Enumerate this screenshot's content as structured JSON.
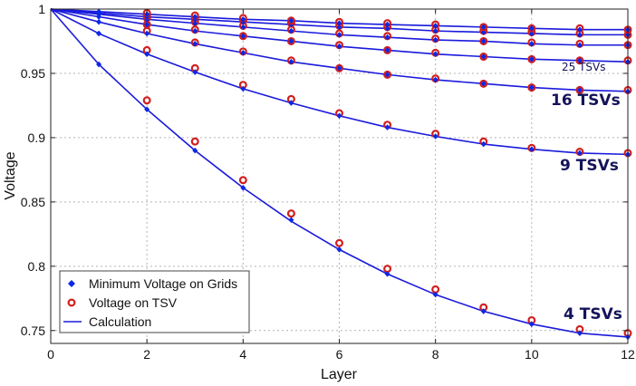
{
  "chart_data": {
    "type": "line",
    "title": "",
    "xlabel": "Layer",
    "ylabel": "Voltage",
    "xlim": [
      0,
      12
    ],
    "ylim": [
      0.74,
      1.0
    ],
    "xticks": [
      0,
      2,
      4,
      6,
      8,
      10,
      12
    ],
    "yticks": [
      0.75,
      0.8,
      0.85,
      0.9,
      0.95,
      1
    ],
    "ytick_labels": [
      "0.75",
      "0.8",
      "0.85",
      "0.9",
      "0.95",
      "1"
    ],
    "grid": true,
    "legend_position": "bottom-left",
    "legend": [
      "Minimum Voltage on Grids",
      "Voltage on TSV",
      "Calculation"
    ],
    "colors": {
      "calculation": "#1a1adc",
      "grid_marker": "#0a28e6",
      "tsv_marker": "#d21e1e"
    },
    "x": [
      0,
      1,
      2,
      3,
      4,
      5,
      6,
      7,
      8,
      9,
      10,
      11,
      12
    ],
    "series": [
      {
        "name": "4 TSVs",
        "calculation": [
          1.0,
          0.957,
          0.922,
          0.89,
          0.861,
          0.835,
          0.813,
          0.794,
          0.778,
          0.765,
          0.755,
          0.748,
          0.745
        ],
        "min_voltage_on_grids": [
          1.0,
          0.957,
          0.922,
          0.89,
          0.861,
          0.836,
          0.813,
          0.794,
          0.778,
          0.765,
          0.755,
          0.748,
          0.745
        ],
        "voltage_on_tsv": [
          null,
          null,
          0.929,
          0.897,
          0.867,
          0.841,
          0.818,
          0.798,
          0.782,
          0.768,
          0.758,
          0.751,
          0.748
        ]
      },
      {
        "name": "9 TSVs",
        "calculation": [
          1.0,
          0.981,
          0.965,
          0.951,
          0.938,
          0.927,
          0.917,
          0.908,
          0.901,
          0.895,
          0.891,
          0.888,
          0.887
        ],
        "min_voltage_on_grids": [
          1.0,
          0.981,
          0.965,
          0.951,
          0.938,
          0.927,
          0.917,
          0.908,
          0.901,
          0.895,
          0.891,
          0.888,
          0.887
        ],
        "voltage_on_tsv": [
          null,
          null,
          0.968,
          0.954,
          0.941,
          0.93,
          0.919,
          0.91,
          0.903,
          0.897,
          0.892,
          0.889,
          0.888
        ]
      },
      {
        "name": "16 TSVs",
        "calculation": [
          1.0,
          0.99,
          0.981,
          0.973,
          0.966,
          0.959,
          0.954,
          0.949,
          0.945,
          0.942,
          0.939,
          0.937,
          0.936
        ],
        "min_voltage_on_grids": [
          1.0,
          0.99,
          0.981,
          0.973,
          0.966,
          0.959,
          0.954,
          0.949,
          0.945,
          0.942,
          0.939,
          0.937,
          0.936
        ],
        "voltage_on_tsv": [
          null,
          null,
          0.983,
          0.974,
          0.967,
          0.96,
          0.954,
          0.949,
          0.946,
          0.942,
          0.939,
          0.937,
          0.937
        ]
      },
      {
        "name": "25 TSVs",
        "calculation": [
          1.0,
          0.994,
          0.988,
          0.983,
          0.979,
          0.975,
          0.971,
          0.968,
          0.965,
          0.963,
          0.961,
          0.96,
          0.959
        ],
        "min_voltage_on_grids": [
          1.0,
          0.994,
          0.988,
          0.983,
          0.979,
          0.975,
          0.971,
          0.968,
          0.965,
          0.963,
          0.961,
          0.96,
          0.959
        ],
        "voltage_on_tsv": [
          null,
          null,
          0.988,
          0.984,
          0.979,
          0.975,
          0.972,
          0.968,
          0.966,
          0.963,
          0.961,
          0.96,
          0.96
        ]
      },
      {
        "name": "",
        "calculation": [
          1.0,
          0.996,
          0.992,
          0.989,
          0.986,
          0.983,
          0.98,
          0.978,
          0.976,
          0.975,
          0.973,
          0.972,
          0.972
        ],
        "min_voltage_on_grids": [
          1.0,
          0.996,
          0.992,
          0.989,
          0.986,
          0.983,
          0.98,
          0.978,
          0.976,
          0.975,
          0.973,
          0.972,
          0.972
        ],
        "voltage_on_tsv": [
          null,
          null,
          0.993,
          0.99,
          0.987,
          0.984,
          0.981,
          0.979,
          0.977,
          0.975,
          0.974,
          0.973,
          0.972
        ]
      },
      {
        "name": "",
        "calculation": [
          1.0,
          0.997,
          0.994,
          0.992,
          0.99,
          0.988,
          0.986,
          0.985,
          0.983,
          0.982,
          0.981,
          0.98,
          0.98
        ],
        "min_voltage_on_grids": [
          1.0,
          0.997,
          0.994,
          0.992,
          0.99,
          0.988,
          0.986,
          0.985,
          0.983,
          0.982,
          0.981,
          0.98,
          0.98
        ],
        "voltage_on_tsv": [
          null,
          null,
          0.995,
          0.993,
          0.991,
          0.989,
          0.987,
          0.986,
          0.984,
          0.983,
          0.982,
          0.981,
          0.98
        ]
      },
      {
        "name": "",
        "calculation": [
          1.0,
          0.998,
          0.996,
          0.994,
          0.992,
          0.991,
          0.989,
          0.988,
          0.987,
          0.986,
          0.985,
          0.984,
          0.984
        ],
        "min_voltage_on_grids": [
          1.0,
          0.998,
          0.996,
          0.994,
          0.992,
          0.991,
          0.989,
          0.988,
          0.987,
          0.986,
          0.985,
          0.984,
          0.984
        ],
        "voltage_on_tsv": [
          null,
          null,
          0.997,
          0.995,
          0.993,
          0.991,
          0.99,
          0.989,
          0.988,
          0.986,
          0.985,
          0.985,
          0.984
        ]
      }
    ]
  }
}
